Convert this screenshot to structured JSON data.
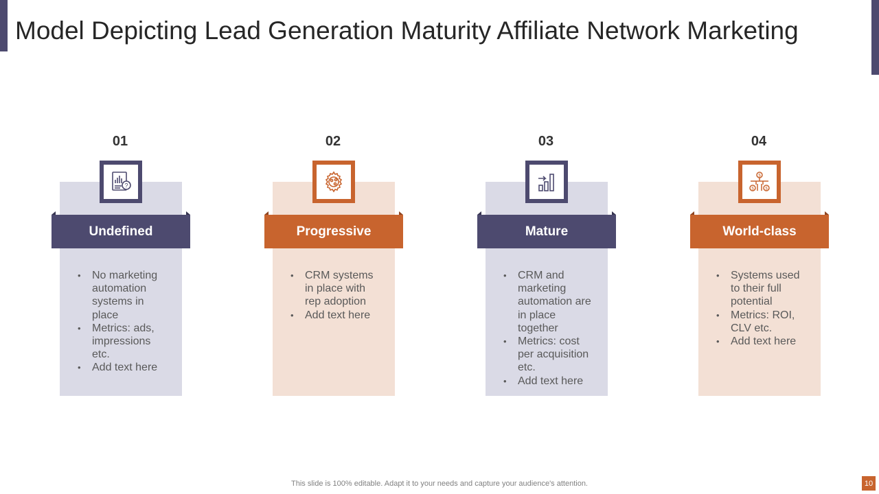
{
  "colors": {
    "purple": "#4d4a6f",
    "purple_light": "#dadae6",
    "orange": "#c8642e",
    "orange_light": "#f3e0d5",
    "fold_purple": "#35334f",
    "fold_orange": "#8e4420"
  },
  "title": "Model Depicting Lead Generation Maturity Affiliate Network Marketing",
  "stages": [
    {
      "number": "01",
      "label": "Undefined",
      "icon": "report-chart-question-icon",
      "theme": "purple",
      "bullets": [
        "No marketing automation systems in place",
        "Metrics: ads, impressions etc.",
        "Add text here"
      ]
    },
    {
      "number": "02",
      "label": "Progressive",
      "icon": "gear-money-icon",
      "theme": "orange",
      "bullets": [
        "CRM systems in place with rep adoption",
        "Add text here"
      ]
    },
    {
      "number": "03",
      "label": "Mature",
      "icon": "growth-bars-arrow-icon",
      "theme": "purple",
      "bullets": [
        "CRM and marketing automation are in place together",
        "Metrics: cost per acquisition etc.",
        "Add text here"
      ]
    },
    {
      "number": "04",
      "label": "World-class",
      "icon": "money-network-icon",
      "theme": "orange",
      "bullets": [
        "Systems used to their full potential",
        "Metrics: ROI, CLV etc.",
        "Add text here"
      ]
    }
  ],
  "footer": "This slide is 100% editable. Adapt it to your needs and capture your audience's attention.",
  "page_number": "10"
}
